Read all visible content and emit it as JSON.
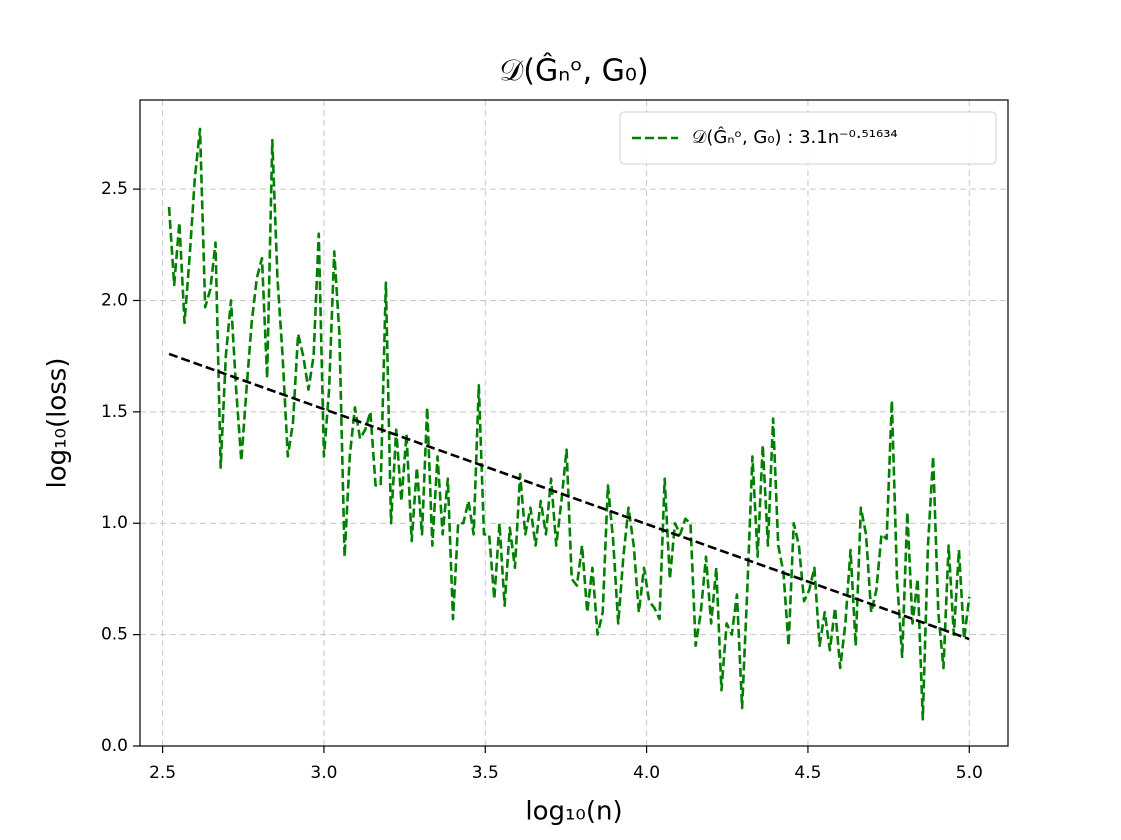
{
  "chart_data": {
    "type": "line",
    "title": "𝒟(Ĝₙᵒ, G₀)",
    "x_label": "log₁₀(n)",
    "y_label": "log₁₀(loss)",
    "xlim": [
      2.43,
      5.12
    ],
    "ylim": [
      0,
      2.9
    ],
    "xticks": [
      2.5,
      {
        "value": 3,
        "label": "3.0"
      },
      3.5,
      {
        "value": 4,
        "label": "4.0"
      },
      4.5,
      {
        "value": 5,
        "label": "5.0"
      }
    ],
    "yticks": [
      {
        "value": 0,
        "label": "0.0"
      },
      0.5,
      {
        "value": 1,
        "label": "1.0"
      },
      1.5,
      {
        "value": 2,
        "label": "2.0"
      },
      2.5
    ],
    "grid": true,
    "legend": "upper right",
    "series": [
      {
        "name": "𝒟(Ĝₙᵒ, G₀) : 3.1n⁻⁰·⁵¹⁶³⁴",
        "color": "#008000",
        "x": [
          2.52,
          2.536,
          2.552,
          2.568,
          2.584,
          2.6,
          2.616,
          2.632,
          2.648,
          2.664,
          2.68,
          2.696,
          2.712,
          2.728,
          2.744,
          2.76,
          2.776,
          2.792,
          2.808,
          2.824,
          2.84,
          2.856,
          2.872,
          2.888,
          2.904,
          2.92,
          2.936,
          2.952,
          2.968,
          2.984,
          3.0,
          3.016,
          3.032,
          3.048,
          3.064,
          3.08,
          3.096,
          3.112,
          3.128,
          3.144,
          3.16,
          3.176,
          3.192,
          3.208,
          3.224,
          3.24,
          3.256,
          3.272,
          3.288,
          3.304,
          3.32,
          3.336,
          3.352,
          3.368,
          3.384,
          3.4,
          3.416,
          3.432,
          3.448,
          3.464,
          3.48,
          3.496,
          3.512,
          3.528,
          3.544,
          3.56,
          3.576,
          3.592,
          3.608,
          3.624,
          3.64,
          3.656,
          3.672,
          3.688,
          3.704,
          3.72,
          3.736,
          3.752,
          3.768,
          3.784,
          3.8,
          3.816,
          3.832,
          3.848,
          3.864,
          3.88,
          3.896,
          3.912,
          3.928,
          3.944,
          3.96,
          3.976,
          3.992,
          4.008,
          4.024,
          4.04,
          4.056,
          4.072,
          4.088,
          4.104,
          4.12,
          4.136,
          4.152,
          4.168,
          4.184,
          4.2,
          4.216,
          4.232,
          4.248,
          4.264,
          4.28,
          4.296,
          4.312,
          4.328,
          4.344,
          4.36,
          4.376,
          4.392,
          4.408,
          4.424,
          4.44,
          4.456,
          4.472,
          4.488,
          4.504,
          4.52,
          4.536,
          4.552,
          4.568,
          4.584,
          4.6,
          4.616,
          4.632,
          4.648,
          4.664,
          4.68,
          4.696,
          4.712,
          4.728,
          4.744,
          4.76,
          4.776,
          4.792,
          4.808,
          4.824,
          4.84,
          4.856,
          4.872,
          4.888,
          4.904,
          4.92,
          4.936,
          4.952,
          4.968,
          4.984,
          5.0
        ],
        "values": [
          2.42,
          2.07,
          2.35,
          1.9,
          2.2,
          2.55,
          2.77,
          1.97,
          2.05,
          2.26,
          1.25,
          1.75,
          2.0,
          1.6,
          1.28,
          1.6,
          1.9,
          2.1,
          2.19,
          1.65,
          2.72,
          2.1,
          1.75,
          1.3,
          1.45,
          1.85,
          1.75,
          1.6,
          1.75,
          2.3,
          1.3,
          1.6,
          2.22,
          1.85,
          0.85,
          1.3,
          1.52,
          1.38,
          1.42,
          1.5,
          1.17,
          1.17,
          2.08,
          1.0,
          1.42,
          1.1,
          1.4,
          0.92,
          1.25,
          0.95,
          1.52,
          0.9,
          1.3,
          0.95,
          1.2,
          0.57,
          1.0,
          1.0,
          1.1,
          0.95,
          1.62,
          0.95,
          0.95,
          0.66,
          1.0,
          0.63,
          0.98,
          0.8,
          1.22,
          0.95,
          1.07,
          0.9,
          1.1,
          0.95,
          1.2,
          0.9,
          1.1,
          1.33,
          0.75,
          0.72,
          0.9,
          0.6,
          0.8,
          0.5,
          0.6,
          1.17,
          0.93,
          0.55,
          0.85,
          1.07,
          0.9,
          0.6,
          0.8,
          0.65,
          0.62,
          0.57,
          1.2,
          0.75,
          1.0,
          0.95,
          1.02,
          1.0,
          0.45,
          0.6,
          0.85,
          0.55,
          0.8,
          0.25,
          0.55,
          0.5,
          0.68,
          0.17,
          0.7,
          1.3,
          0.85,
          1.35,
          0.9,
          1.47,
          0.9,
          0.78,
          0.45,
          1.0,
          0.9,
          0.65,
          0.7,
          0.8,
          0.45,
          0.6,
          0.43,
          0.62,
          0.35,
          0.55,
          0.88,
          0.45,
          1.07,
          0.95,
          0.6,
          0.7,
          0.95,
          0.93,
          1.55,
          0.75,
          0.4,
          1.05,
          0.55,
          0.75,
          0.12,
          0.9,
          1.3,
          0.6,
          0.35,
          0.9,
          0.5,
          0.88,
          0.48,
          0.67
        ]
      },
      {
        "color": "#000000",
        "x": [
          2.52,
          5.0
        ],
        "values": [
          1.76,
          0.48
        ]
      }
    ]
  }
}
